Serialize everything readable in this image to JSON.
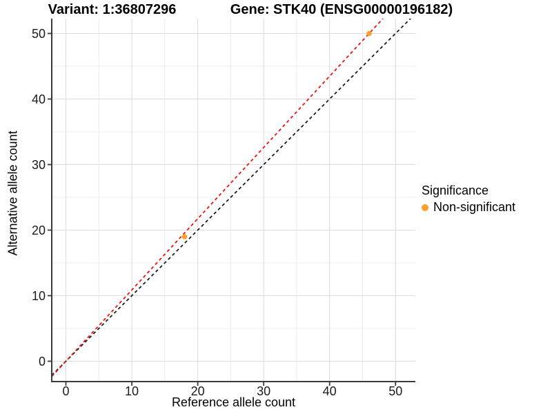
{
  "figure": {
    "title_left": "Variant: 1:36807296",
    "title_right": "Gene: STK40 (ENSG00000196182)"
  },
  "legend": {
    "title": "Significance",
    "items": [
      {
        "label": "Non-significant",
        "color": "#F9A12B"
      }
    ]
  },
  "chart_data": {
    "type": "scatter",
    "title_left": "Variant: 1:36807296",
    "title_right": "Gene: STK40 (ENSG00000196182)",
    "xlabel": "Reference allele count",
    "ylabel": "Alternative allele count",
    "xlim": [
      -2.15,
      53.0
    ],
    "ylim": [
      -3.1,
      52.3
    ],
    "x_ticks": [
      0,
      10,
      20,
      30,
      40,
      50
    ],
    "y_ticks": [
      0,
      10,
      20,
      30,
      40,
      50
    ],
    "x_minor": [
      5,
      15,
      25,
      35,
      45
    ],
    "y_minor": [
      5,
      15,
      25,
      35,
      45
    ],
    "grid": true,
    "legend_position": "right",
    "series": [
      {
        "name": "Non-significant",
        "color": "#F9A12B",
        "points": [
          [
            18,
            19
          ],
          [
            46,
            50
          ]
        ]
      }
    ],
    "ablines": [
      {
        "name": "identity-line",
        "slope": 1.0,
        "intercept": 0,
        "color": "#1A1A1A",
        "linetype": "dashed"
      },
      {
        "name": "allelic-ratio-line",
        "slope": 1.087,
        "intercept": 0,
        "color": "#EE1111",
        "linetype": "dashed"
      }
    ]
  },
  "colors": {
    "grid_major": "#DCDCDC",
    "grid_minor": "#ECECEC",
    "axis": "#3A3A3A",
    "tick_text": "#1A1A1A"
  }
}
